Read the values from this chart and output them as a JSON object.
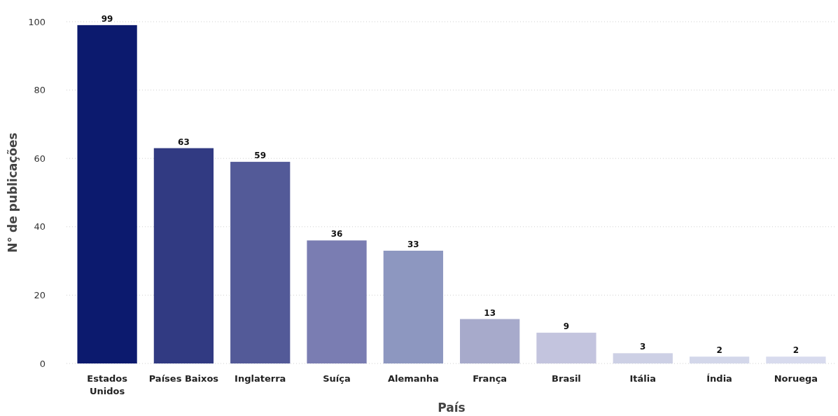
{
  "chart_data": {
    "type": "bar",
    "xlabel": "País",
    "ylabel": "N° de publicações",
    "categories": [
      "Estados Unidos",
      "Países Baixos",
      "Inglaterra",
      "Suíça",
      "Alemanha",
      "França",
      "Brasil",
      "Itália",
      "Índia",
      "Noruega"
    ],
    "values": [
      99,
      63,
      59,
      36,
      33,
      13,
      9,
      3,
      2,
      2
    ],
    "colors": [
      "#0c1a6e",
      "#313a82",
      "#535a98",
      "#7a7db2",
      "#8d97c0",
      "#a7aacb",
      "#c3c4de",
      "#cdd0e5",
      "#d3d7ea",
      "#d8dbee"
    ],
    "ylim": [
      0,
      100
    ],
    "yticks": [
      0,
      20,
      40,
      60,
      80,
      100
    ],
    "grid": "y",
    "data_labels": true
  }
}
